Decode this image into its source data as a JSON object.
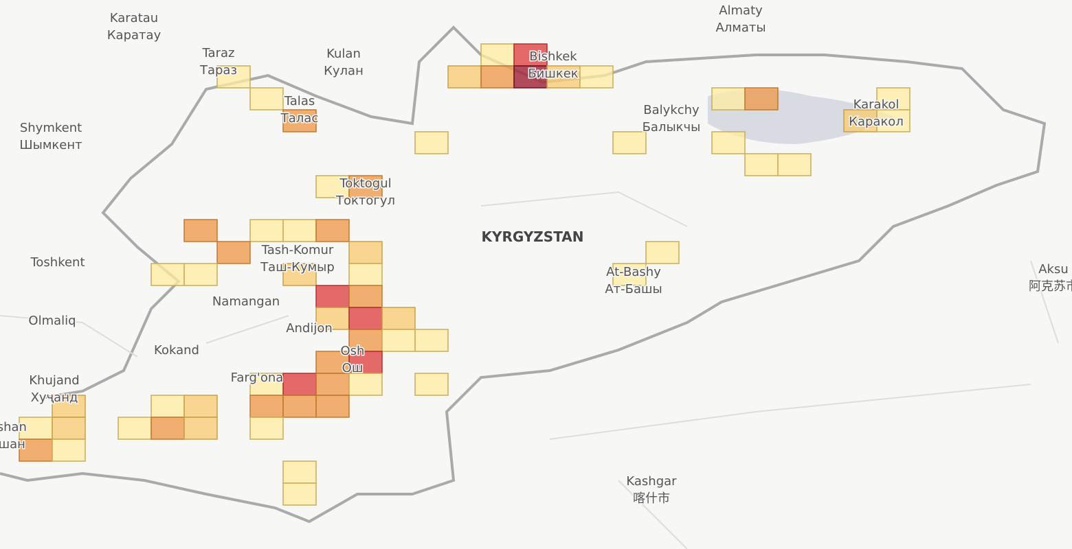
{
  "map": {
    "country": "KYRGYZSTAN",
    "labels": [
      {
        "name": "Karatau",
        "local": "Каратау"
      },
      {
        "name": "Almaty",
        "local": "Алматы"
      },
      {
        "name": "Taraz",
        "local": "Тараз"
      },
      {
        "name": "Kulan",
        "local": "Кулан"
      },
      {
        "name": "Bishkek",
        "local": "Бишкек"
      },
      {
        "name": "Talas",
        "local": "Талас"
      },
      {
        "name": "Shymkent",
        "local": "Шымкент"
      },
      {
        "name": "Balykchy",
        "local": "Балыкчы"
      },
      {
        "name": "Karakol",
        "local": "Каракол"
      },
      {
        "name": "Toktogul",
        "local": "Токтогул"
      },
      {
        "name": "Tash-Komur",
        "local": "Таш-Кумыр"
      },
      {
        "name": "Toshkent"
      },
      {
        "name": "Namangan"
      },
      {
        "name": "At-Bashy",
        "local": "Ат-Башы"
      },
      {
        "name": "Aksu",
        "local": "阿克苏市"
      },
      {
        "name": "Olmaliq"
      },
      {
        "name": "Andijon"
      },
      {
        "name": "Kokand"
      },
      {
        "name": "Osh",
        "local": "Ош"
      },
      {
        "name": "Farg'ona"
      },
      {
        "name": "Khujand",
        "local": "Хуҷанд"
      },
      {
        "name": "yshan",
        "local": "вшан"
      },
      {
        "name": "Kashgar",
        "local": "喀什市"
      }
    ]
  }
}
